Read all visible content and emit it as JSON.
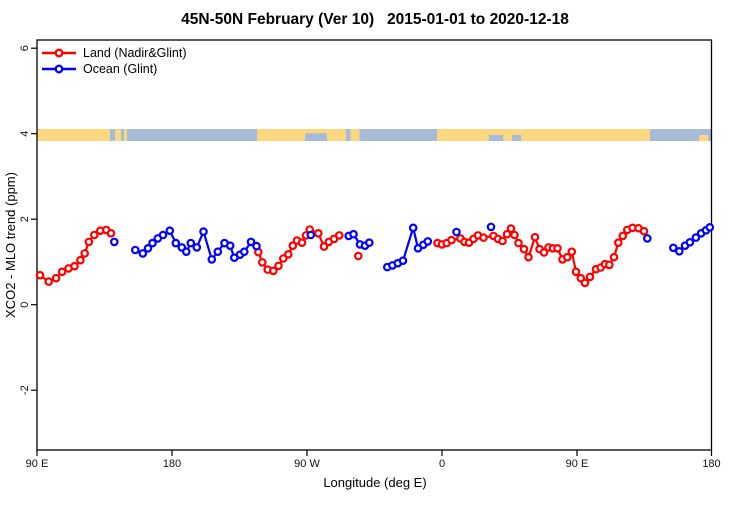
{
  "title": "45N-50N February (Ver 10)   2015-01-01 to 2020-12-18",
  "chart_data": {
    "type": "scatter",
    "title": "45N-50N February (Ver 10)   2015-01-01 to 2020-12-18",
    "xlabel": "Longitude (deg E)",
    "ylabel": "XCO2 - MLO trend (ppm)",
    "xlim": [
      90,
      540
    ],
    "ylim": [
      -3.4,
      6.2
    ],
    "grid": false,
    "legend_position": "top-left",
    "x_ticks": [
      {
        "lon": 90,
        "label": "90 E"
      },
      {
        "lon": 180,
        "label": "180"
      },
      {
        "lon": 270,
        "label": "90 W"
      },
      {
        "lon": 360,
        "label": "0"
      },
      {
        "lon": 450,
        "label": "90 E"
      },
      {
        "lon": 540,
        "label": "180"
      }
    ],
    "y_ticks": [
      {
        "v": 6,
        "label": "6"
      },
      {
        "v": 4,
        "label": "4"
      },
      {
        "v": 2,
        "label": "2"
      },
      {
        "v": 0,
        "label": "0"
      },
      {
        "v": -2,
        "label": "-2"
      }
    ],
    "legend": [
      {
        "label": "Land (Nadir&Glint)",
        "color": "#ff0000"
      },
      {
        "label": "Ocean (Glint)",
        "color": "#0000ff"
      }
    ],
    "map_band": {
      "center_value": 4,
      "land_color": "#fbd87f",
      "ocean_color": "#a6bbd8",
      "land_segments": [
        [
          90,
          138.7
        ],
        [
          142,
          146
        ],
        [
          148,
          150
        ],
        [
          236.7,
          296
        ],
        [
          299,
          305
        ],
        [
          356.7,
          498.7
        ]
      ],
      "overlays": [
        [
          268.7,
          283.3,
          0.35,
          1.0,
          "ocean"
        ],
        [
          391.3,
          400.7,
          0.5,
          1.0,
          "ocean"
        ],
        [
          406.7,
          412.7,
          0.5,
          1.0,
          "ocean"
        ],
        [
          531.5,
          537.5,
          0.5,
          1.0,
          "land"
        ]
      ]
    },
    "series": [
      {
        "name": "Land (Nadir&Glint)",
        "color": "#ff0000",
        "runs": [
          [
            [
              92,
              0.69
            ],
            [
              97.8,
              0.54
            ],
            [
              102.7,
              0.62
            ],
            [
              106.7,
              0.77
            ],
            [
              111,
              0.85
            ],
            [
              115,
              0.9
            ],
            [
              118.9,
              1.04
            ],
            [
              121.8,
              1.2
            ],
            [
              124.5,
              1.47
            ],
            [
              128.2,
              1.63
            ],
            [
              132.2,
              1.73
            ],
            [
              136.2,
              1.75
            ],
            [
              139.3,
              1.67
            ]
          ],
          [
            [
              237.5,
              1.23
            ],
            [
              240.2,
              0.99
            ],
            [
              243.8,
              0.82
            ],
            [
              247.5,
              0.79
            ],
            [
              251,
              0.91
            ],
            [
              254.2,
              1.08
            ],
            [
              257.5,
              1.18
            ],
            [
              260.5,
              1.38
            ],
            [
              263.3,
              1.5
            ],
            [
              266.7,
              1.45
            ],
            [
              269.3,
              1.62
            ],
            [
              271.8,
              1.76
            ],
            [
              277.5,
              1.67
            ],
            [
              281.3,
              1.36
            ],
            [
              284.5,
              1.47
            ],
            [
              288,
              1.54
            ],
            [
              291.5,
              1.62
            ]
          ],
          [
            [
              304.2,
              1.14
            ]
          ],
          [
            [
              357,
              1.44
            ],
            [
              360,
              1.41
            ],
            [
              363.1,
              1.44
            ],
            [
              366.3,
              1.51
            ],
            [
              372.3,
              1.55
            ],
            [
              375,
              1.47
            ],
            [
              378,
              1.45
            ],
            [
              381,
              1.54
            ],
            [
              384,
              1.62
            ],
            [
              387.7,
              1.57
            ],
            [
              394.3,
              1.61
            ],
            [
              397.3,
              1.54
            ],
            [
              400.3,
              1.49
            ],
            [
              403.3,
              1.65
            ],
            [
              406,
              1.78
            ],
            [
              408.3,
              1.63
            ],
            [
              411,
              1.44
            ],
            [
              414.7,
              1.3
            ],
            [
              417.7,
              1.11
            ],
            [
              422,
              1.58
            ],
            [
              425,
              1.3
            ],
            [
              428,
              1.22
            ],
            [
              431,
              1.34
            ],
            [
              434,
              1.32
            ],
            [
              437,
              1.32
            ],
            [
              440.3,
              1.06
            ],
            [
              443.5,
              1.11
            ],
            [
              446.5,
              1.24
            ],
            [
              449.3,
              0.77
            ],
            [
              452.5,
              0.62
            ],
            [
              455.3,
              0.51
            ],
            [
              458.7,
              0.65
            ],
            [
              462.7,
              0.83
            ],
            [
              465.8,
              0.87
            ],
            [
              468.7,
              0.95
            ],
            [
              471.5,
              0.93
            ],
            [
              474.7,
              1.11
            ],
            [
              477.5,
              1.45
            ],
            [
              480.5,
              1.61
            ],
            [
              483.5,
              1.75
            ],
            [
              487,
              1.8
            ],
            [
              491,
              1.79
            ],
            [
              494.7,
              1.72
            ]
          ]
        ]
      },
      {
        "name": "Ocean (Glint)",
        "color": "#0000ff",
        "runs": [
          [
            [
              141.5,
              1.47
            ]
          ],
          [
            [
              155.5,
              1.28
            ],
            [
              160.5,
              1.2
            ],
            [
              164,
              1.32
            ],
            [
              167,
              1.44
            ],
            [
              170.5,
              1.55
            ],
            [
              174,
              1.63
            ],
            [
              178.5,
              1.73
            ],
            [
              182.5,
              1.44
            ],
            [
              186.5,
              1.34
            ],
            [
              189.5,
              1.24
            ],
            [
              192.5,
              1.44
            ],
            [
              196.5,
              1.34
            ],
            [
              201,
              1.71
            ],
            [
              206.5,
              1.06
            ],
            [
              210.5,
              1.24
            ],
            [
              215,
              1.44
            ],
            [
              218.8,
              1.38
            ],
            [
              221.5,
              1.1
            ],
            [
              225.3,
              1.17
            ],
            [
              228.2,
              1.24
            ],
            [
              232.7,
              1.47
            ],
            [
              236.3,
              1.37
            ]
          ],
          [
            [
              272.5,
              1.63
            ]
          ],
          [
            [
              297.8,
              1.61
            ],
            [
              301,
              1.65
            ],
            [
              305.3,
              1.41
            ],
            [
              308.7,
              1.38
            ],
            [
              311.5,
              1.45
            ]
          ],
          [
            [
              323.5,
              0.88
            ],
            [
              327,
              0.92
            ],
            [
              330.5,
              0.97
            ],
            [
              334,
              1.03
            ],
            [
              340.8,
              1.8
            ],
            [
              344,
              1.32
            ],
            [
              347.5,
              1.4
            ],
            [
              350.5,
              1.48
            ]
          ],
          [
            [
              369.7,
              1.7
            ]
          ],
          [
            [
              392.7,
              1.82
            ]
          ],
          [
            [
              496.9,
              1.55
            ]
          ],
          [
            [
              514.2,
              1.33
            ],
            [
              518.2,
              1.25
            ],
            [
              522,
              1.38
            ],
            [
              525.3,
              1.46
            ],
            [
              529.3,
              1.57
            ],
            [
              532.7,
              1.67
            ],
            [
              536,
              1.74
            ],
            [
              538.5,
              1.81
            ]
          ]
        ]
      }
    ]
  }
}
